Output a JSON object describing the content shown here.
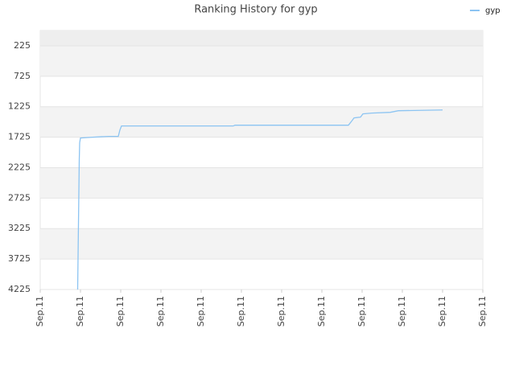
{
  "chart_data": {
    "type": "line",
    "title": "Ranking History for gyp",
    "inverted": true,
    "grid": true,
    "legend": "top-right",
    "xlim": [
      0,
      11
    ],
    "xticks": [
      {
        "value": 0,
        "label": "Sep.11"
      },
      {
        "value": 1,
        "label": "Sep.11"
      },
      {
        "value": 2,
        "label": "Sep.11"
      },
      {
        "value": 3,
        "label": "Sep.11"
      },
      {
        "value": 4,
        "label": "Sep.11"
      },
      {
        "value": 5,
        "label": "Sep.11"
      },
      {
        "value": 6,
        "label": "Sep.11"
      },
      {
        "value": 7,
        "label": "Sep.11"
      },
      {
        "value": 8,
        "label": "Sep.11"
      },
      {
        "value": 9,
        "label": "Sep.11"
      },
      {
        "value": 10,
        "label": "Sep.11"
      },
      {
        "value": 11,
        "label": "Sep.11"
      }
    ],
    "ylim": [
      -25,
      4225
    ],
    "yticks": [
      225,
      725,
      1225,
      1725,
      2225,
      2725,
      3225,
      3725,
      4225
    ],
    "x": [
      0.93,
      0.97,
      0.98,
      1.0,
      1.3,
      1.7,
      1.94,
      1.98,
      2.02,
      4.8,
      4.84,
      7.66,
      7.74,
      7.8,
      7.96,
      8.02,
      8.24,
      8.7,
      8.9,
      10.0
    ],
    "series": [
      {
        "name": "gyp",
        "color": "#8cc4f2",
        "values": [
          4225,
          2093,
          1817,
          1738,
          1725,
          1712,
          1712,
          1607,
          1541,
          1541,
          1528,
          1528,
          1462,
          1409,
          1396,
          1343,
          1330,
          1317,
          1291,
          1278
        ]
      }
    ]
  }
}
